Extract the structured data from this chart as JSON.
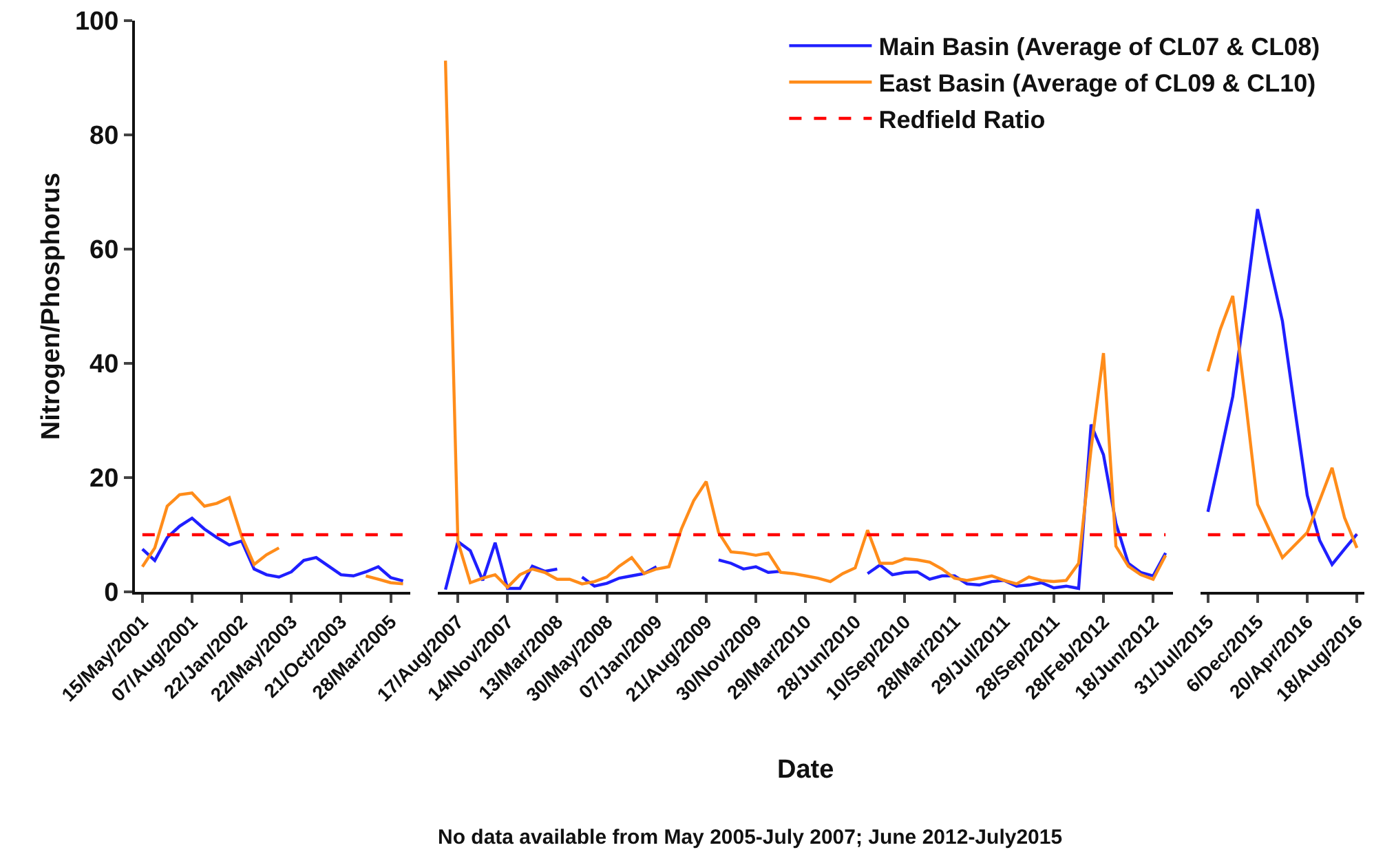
{
  "chart_data": [
    {
      "type": "line",
      "ylabel": "Nitrogen/Phosphorus",
      "ylim": [
        0,
        100
      ],
      "yticks": [
        0,
        20,
        40,
        60,
        80,
        100
      ],
      "marker": "none",
      "line_style": "solid",
      "categories": [
        "15/May/2001",
        null,
        null,
        null,
        "07/Aug/2001",
        null,
        null,
        null,
        "22/Jan/2002",
        null,
        null,
        null,
        "22/May/2003",
        null,
        null,
        null,
        "21/Oct/2003",
        null,
        null,
        null,
        "28/Mar/2005",
        null
      ],
      "series": [
        {
          "color": "#1f1fff",
          "values": [
            7.5,
            5.5,
            9.5,
            11.5,
            12.9,
            11,
            9.5,
            8.2,
            8.9,
            4,
            3,
            2.6,
            3.5,
            5.5,
            6,
            4.5,
            3,
            2.8,
            3.5,
            4.4,
            2.5,
            1.9
          ]
        },
        {
          "color": "#ff8c1a",
          "values": [
            4.4,
            7.7,
            15,
            17,
            17.3,
            15,
            15.5,
            16.5,
            9.7,
            4.8,
            6.5,
            7.7,
            null,
            null,
            null,
            null,
            null,
            null,
            2.8,
            2.2,
            1.6,
            1.4
          ]
        }
      ],
      "ref_lines": [
        {
          "axis": "y",
          "value": 10,
          "color": "#ff0000",
          "line_style": "dashed"
        }
      ]
    },
    {
      "type": "line",
      "xlabel": "Date",
      "ylim": [
        0,
        100
      ],
      "yticks": [
        0,
        20,
        40,
        60,
        80,
        100
      ],
      "tick_labels": "x",
      "marker": "none",
      "line_style": "solid",
      "legend": "top right",
      "annotations": [
        "No data available from May 2005-July 2007; June 2012-July2015"
      ],
      "categories": [
        null,
        "17/Aug/2007",
        null,
        null,
        null,
        "14/Nov/2007",
        null,
        null,
        null,
        "13/Mar/2008",
        null,
        null,
        null,
        "30/May/2008",
        null,
        null,
        null,
        "07/Jan/2009",
        null,
        null,
        null,
        "21/Aug/2009",
        null,
        null,
        null,
        "30/Nov/2009",
        null,
        null,
        null,
        "29/Mar/2010",
        null,
        null,
        null,
        "28/Jun/2010",
        null,
        null,
        null,
        "10/Sep/2010",
        null,
        null,
        null,
        "28/Mar/2011",
        null,
        null,
        null,
        "29/Jul/2011",
        null,
        null,
        null,
        "28/Sep/2011",
        null,
        null,
        null,
        "28/Feb/2012",
        null,
        null,
        null,
        "18/Jun/2012",
        null
      ],
      "series": [
        {
          "name": "Main Basin (Average of CL07 & CL08)",
          "color": "#1f1fff",
          "values": [
            0.4,
            8.8,
            7.2,
            2.0,
            8.6,
            0.6,
            0.6,
            4.5,
            3.6,
            4.0,
            null,
            2.6,
            1.0,
            1.5,
            2.4,
            2.8,
            3.2,
            4.4,
            null,
            null,
            null,
            null,
            5.6,
            5.0,
            4.0,
            4.4,
            3.4,
            3.6,
            null,
            null,
            null,
            null,
            null,
            null,
            3.2,
            4.7,
            3.0,
            3.4,
            3.5,
            2.2,
            2.8,
            2.8,
            1.4,
            1.2,
            1.8,
            2.0,
            1.0,
            1.2,
            1.6,
            0.7,
            1.0,
            0.6,
            29.3,
            24,
            12,
            5.0,
            3.4,
            2.8,
            6.8
          ]
        },
        {
          "name": "East Basin (Average of CL09 & CL10)",
          "color": "#ff8c1a",
          "values": [
            93,
            8.8,
            1.6,
            2.4,
            3.0,
            0.8,
            3.0,
            4.0,
            3.4,
            2.2,
            2.2,
            1.4,
            1.8,
            2.6,
            4.5,
            6.0,
            3.2,
            4.0,
            4.4,
            11,
            16,
            19.3,
            10.4,
            7.0,
            6.8,
            6.4,
            6.8,
            3.4,
            3.2,
            2.8,
            2.4,
            1.8,
            3.2,
            4.2,
            10.8,
            5.0,
            5.0,
            5.8,
            5.6,
            5.2,
            4.0,
            2.4,
            2.0,
            2.4,
            2.8,
            2.0,
            1.4,
            2.6,
            2.0,
            1.8,
            2.0,
            5.0,
            25,
            41.8,
            8.0,
            4.5,
            3.0,
            2.2,
            6.4
          ]
        }
      ],
      "ref_lines": [
        {
          "axis": "y",
          "value": 10,
          "label": "Redfield Ratio",
          "color": "#ff0000",
          "line_style": "dashed"
        }
      ]
    },
    {
      "type": "line",
      "ylim": [
        0,
        100
      ],
      "yticks": [
        0,
        20,
        40,
        60,
        80,
        100
      ],
      "tick_labels": "x",
      "marker": "none",
      "line_style": "solid",
      "categories": [
        "31/Jul/2015",
        null,
        null,
        null,
        "6/Dec/2015",
        null,
        null,
        null,
        "20/Apr/2016",
        null,
        null,
        null,
        "18/Aug/2016"
      ],
      "series": [
        {
          "color": "#1f1fff",
          "values": [
            14,
            24,
            34.2,
            50,
            67,
            57,
            47.4,
            32,
            16.9,
            9,
            4.8,
            7.5,
            10.1
          ]
        },
        {
          "color": "#ff8c1a",
          "values": [
            38.6,
            46,
            51.8,
            34,
            15.3,
            10.6,
            6,
            8.2,
            10.4,
            16,
            21.7,
            13,
            7.7
          ]
        }
      ],
      "ref_lines": [
        {
          "axis": "y",
          "value": 10,
          "color": "#ff0000",
          "line_style": "dashed"
        }
      ]
    }
  ]
}
